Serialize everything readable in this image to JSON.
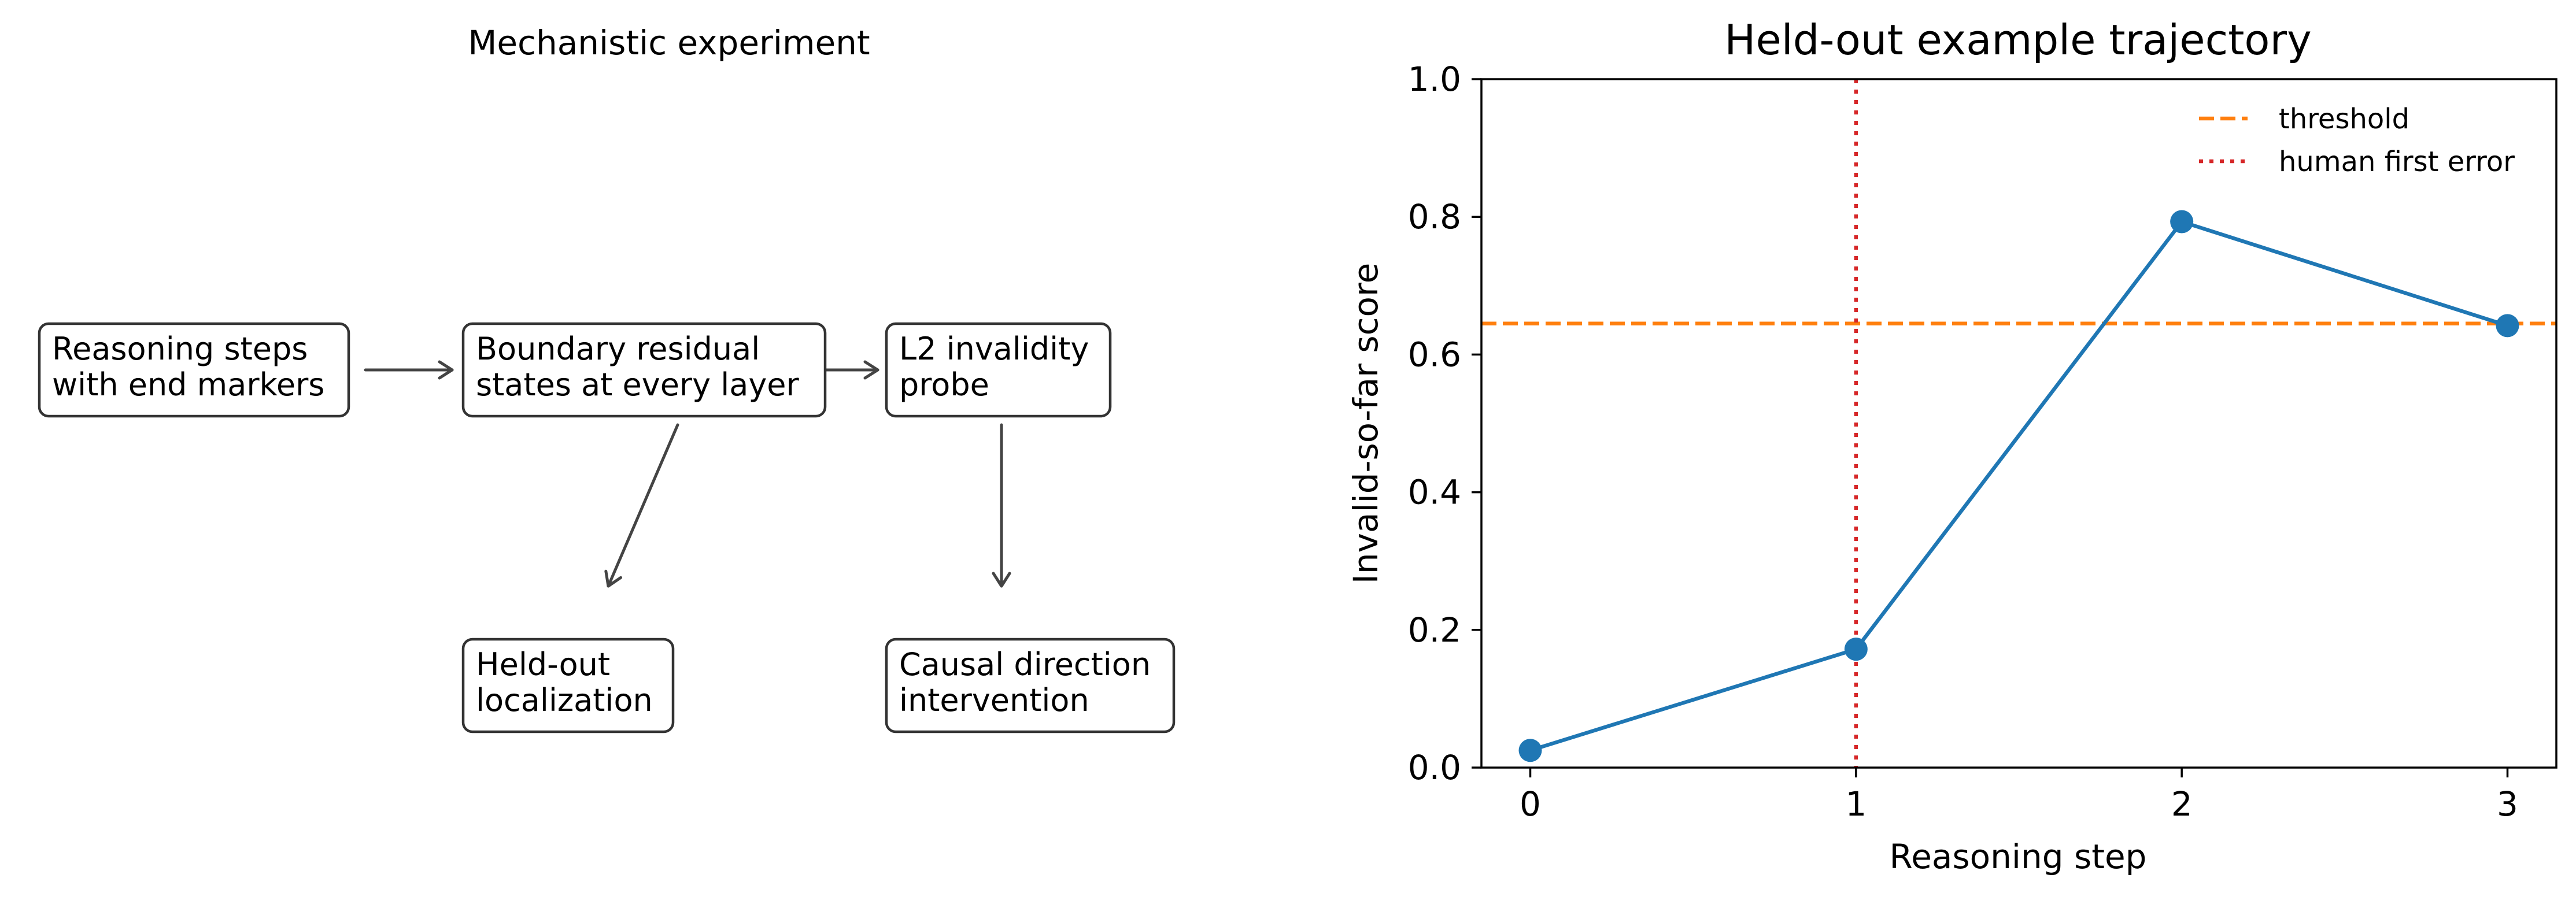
{
  "diagram": {
    "title": "Mechanistic experiment",
    "boxes": [
      {
        "id": "box-reasoning-steps",
        "lines": [
          "Reasoning steps",
          "with end markers"
        ]
      },
      {
        "id": "box-boundary-residual",
        "lines": [
          "Boundary residual",
          "states at every layer"
        ]
      },
      {
        "id": "box-l2-probe",
        "lines": [
          "L2 invalidity",
          "probe"
        ]
      },
      {
        "id": "box-held-out-localization",
        "lines": [
          "Held-out",
          "localization"
        ]
      },
      {
        "id": "box-causal-intervention",
        "lines": [
          "Causal direction",
          "intervention"
        ]
      }
    ],
    "edges": [
      {
        "from": "box-reasoning-steps",
        "to": "box-boundary-residual"
      },
      {
        "from": "box-boundary-residual",
        "to": "box-l2-probe"
      },
      {
        "from": "box-boundary-residual",
        "to": "box-held-out-localization"
      },
      {
        "from": "box-l2-probe",
        "to": "box-causal-intervention"
      }
    ]
  },
  "chart_data": {
    "type": "line",
    "title": "Held-out example trajectory",
    "xlabel": "Reasoning step",
    "ylabel": "Invalid-so-far score",
    "x": [
      0,
      1,
      2,
      3
    ],
    "xticks": [
      0,
      1,
      2,
      3
    ],
    "xlim": [
      -0.15,
      3.15
    ],
    "ylim": [
      0.0,
      1.0
    ],
    "yticks": [
      0.0,
      0.2,
      0.4,
      0.6,
      0.8,
      1.0
    ],
    "ytick_labels": [
      "0.0",
      "0.2",
      "0.4",
      "0.6",
      "0.8",
      "1.0"
    ],
    "series": [
      {
        "values": [
          0.025,
          0.172,
          0.793,
          0.642
        ],
        "color": "#1f77b4",
        "marker": "circle"
      }
    ],
    "reference_lines": [
      {
        "name": "threshold",
        "orientation": "horizontal",
        "value": 0.645,
        "color": "#ff7f0e",
        "style": "dashed"
      },
      {
        "name": "human first error",
        "orientation": "vertical",
        "value": 1,
        "color": "#d62728",
        "style": "dotted"
      }
    ],
    "legend": {
      "placement": "top-right",
      "entries": [
        "threshold",
        "human first error"
      ]
    },
    "grid": false
  }
}
